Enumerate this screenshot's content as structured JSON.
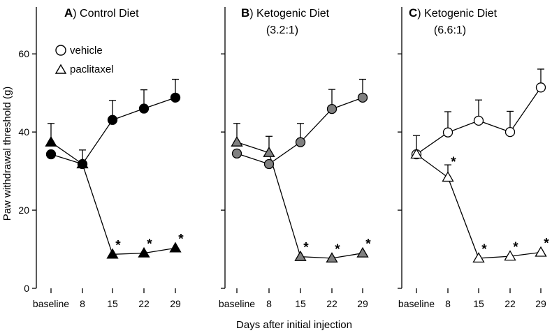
{
  "ylabel": "Paw withdrawal threshold (g)",
  "xlabel": "Days after initial injection",
  "categories": [
    "baseline",
    "8",
    "15",
    "22",
    "29"
  ],
  "yticks": [
    0,
    20,
    40,
    60
  ],
  "legend": {
    "vehicle": "vehicle",
    "paclitaxel": "paclitaxel"
  },
  "significance_mark": "*",
  "chart_data": [
    {
      "type": "line",
      "panel_letter": "A",
      "title": "Control Diet",
      "subtitle": "",
      "categories": [
        "baseline",
        "8",
        "15",
        "22",
        "29"
      ],
      "ylim": [
        0,
        72
      ],
      "marker_fill": "#000000",
      "series": [
        {
          "name": "vehicle",
          "marker": "circle",
          "values": [
            34.3,
            31.8,
            43.1,
            46.0,
            48.8
          ],
          "errors": [
            null,
            3.6,
            5.0,
            4.8,
            4.7
          ]
        },
        {
          "name": "paclitaxel",
          "marker": "triangle",
          "values": [
            37.4,
            31.8,
            8.7,
            9.0,
            10.3
          ],
          "errors": [
            4.8,
            null,
            null,
            null,
            null
          ]
        }
      ],
      "significant": [
        false,
        false,
        true,
        true,
        true
      ]
    },
    {
      "type": "line",
      "panel_letter": "B",
      "title": "Ketogenic Diet",
      "subtitle": "(3.2:1)",
      "categories": [
        "baseline",
        "8",
        "15",
        "22",
        "29"
      ],
      "ylim": [
        0,
        72
      ],
      "marker_fill": "#808080",
      "series": [
        {
          "name": "vehicle",
          "marker": "circle",
          "values": [
            34.5,
            31.8,
            37.4,
            45.9,
            48.8
          ],
          "errors": [
            null,
            null,
            4.8,
            5.0,
            4.7
          ]
        },
        {
          "name": "paclitaxel",
          "marker": "triangle",
          "values": [
            37.4,
            34.7,
            8.1,
            7.7,
            9.0
          ],
          "errors": [
            4.8,
            4.2,
            null,
            null,
            null
          ]
        }
      ],
      "significant": [
        false,
        false,
        true,
        true,
        true
      ]
    },
    {
      "type": "line",
      "panel_letter": "C",
      "title": "Ketogenic Diet",
      "subtitle": "(6.6:1)",
      "categories": [
        "baseline",
        "8",
        "15",
        "22",
        "29"
      ],
      "ylim": [
        0,
        72
      ],
      "marker_fill": "#ffffff",
      "series": [
        {
          "name": "vehicle",
          "marker": "circle",
          "values": [
            34.3,
            39.9,
            42.9,
            40.0,
            51.4
          ],
          "errors": [
            4.8,
            5.3,
            5.3,
            5.3,
            4.7
          ]
        },
        {
          "name": "paclitaxel",
          "marker": "triangle",
          "values": [
            34.3,
            28.4,
            7.7,
            8.2,
            9.2
          ],
          "errors": [
            null,
            3.2,
            null,
            null,
            null
          ]
        }
      ],
      "significant": [
        false,
        true,
        true,
        true,
        true
      ]
    }
  ]
}
